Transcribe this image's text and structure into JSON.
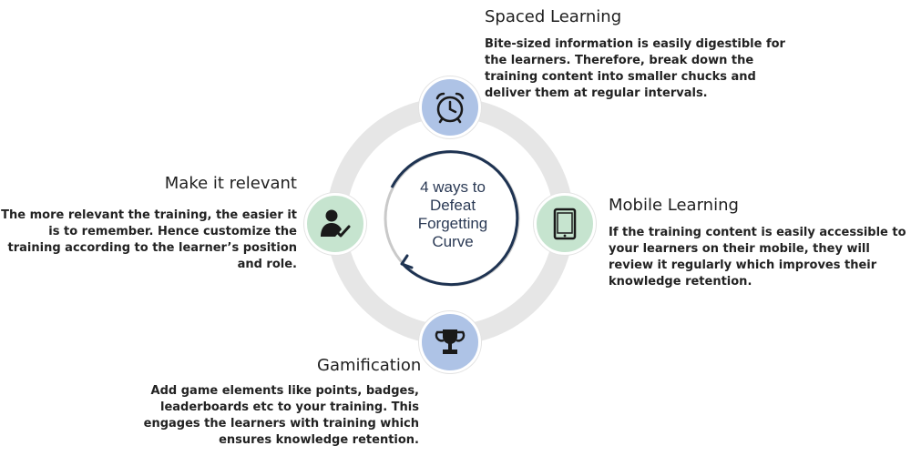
{
  "diagram": {
    "center": {
      "lines": [
        "4 ways to",
        "Defeat",
        "Forgetting",
        "Curve"
      ]
    },
    "items": [
      {
        "id": "spaced-learning",
        "heading": "Spaced Learning",
        "icon": "alarm-clock-icon",
        "color": "#aec3e6",
        "lines": [
          "Bite-sized information is easily digestible for",
          "the learners. Therefore, break down the",
          "training content into smaller chucks and",
          "deliver them at regular intervals."
        ]
      },
      {
        "id": "mobile-learning",
        "heading": "Mobile Learning",
        "icon": "tablet-icon",
        "color": "#c6e4cf",
        "lines": [
          "If the training content is easily accessible to",
          "your learners on their mobile, they will",
          "review it regularly which improves their",
          "knowledge retention."
        ]
      },
      {
        "id": "gamification",
        "heading": "Gamification",
        "icon": "trophy-icon",
        "color": "#aec3e6",
        "lines": [
          "Add game elements like points, badges,",
          "leaderboards etc to your training. This",
          "engages the learners with training which",
          "ensures knowledge retention."
        ]
      },
      {
        "id": "make-it-relevant",
        "heading": "Make it relevant",
        "icon": "user-check-icon",
        "color": "#c6e4cf",
        "lines": [
          "The more relevant the training, the easier it",
          "is to remember. Hence customize the",
          "training according to the learner’s position",
          "and role."
        ]
      }
    ],
    "colors": {
      "ring": "#e6e6e6",
      "inner_ring": "#1e3352",
      "inner_ring_fade": "#c9c9c9"
    }
  }
}
